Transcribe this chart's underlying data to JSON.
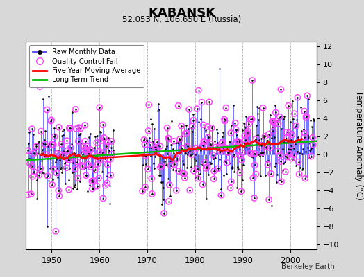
{
  "title": "KABANSK",
  "subtitle": "52.053 N, 106.650 E (Russia)",
  "ylabel": "Temperature Anomaly (°C)",
  "attribution": "Berkeley Earth",
  "xlim": [
    1944.5,
    2005.5
  ],
  "ylim": [
    -10.5,
    12.5
  ],
  "yticks": [
    -10,
    -8,
    -6,
    -4,
    -2,
    0,
    2,
    4,
    6,
    8,
    10,
    12
  ],
  "xticks": [
    1950,
    1960,
    1970,
    1980,
    1990,
    2000
  ],
  "bg_color": "#d8d8d8",
  "plot_bg_color": "#ffffff",
  "grid_color": "#b0b0b0",
  "raw_line_color": "#4444ff",
  "dot_color": "#000000",
  "qc_color": "#ff44ff",
  "mavg_color": "#ff0000",
  "trend_color": "#00bb00",
  "period1_start": 1945,
  "period1_end": 1963,
  "period2_start": 1969,
  "period2_end": 2005,
  "seed": 17
}
